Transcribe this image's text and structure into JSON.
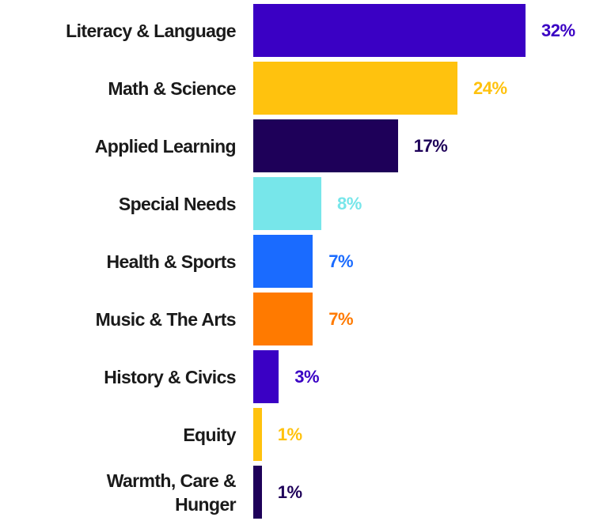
{
  "chart_data": {
    "type": "bar",
    "orientation": "horizontal",
    "categories": [
      "Literacy & Language",
      "Math & Science",
      "Applied Learning",
      "Special Needs",
      "Health & Sports",
      "Music & The Arts",
      "History & Civics",
      "Equity",
      "Warmth, Care & Hunger"
    ],
    "values": [
      32,
      24,
      17,
      8,
      7,
      7,
      3,
      1,
      1
    ],
    "value_labels": [
      "32%",
      "24%",
      "17%",
      "8%",
      "7%",
      "7%",
      "3%",
      "1%",
      "1%"
    ],
    "colors": [
      "#3a00c4",
      "#ffc20e",
      "#1e0059",
      "#77e6ea",
      "#1a6bff",
      "#ff7a00",
      "#3a00c4",
      "#ffc20e",
      "#1e0059"
    ]
  }
}
